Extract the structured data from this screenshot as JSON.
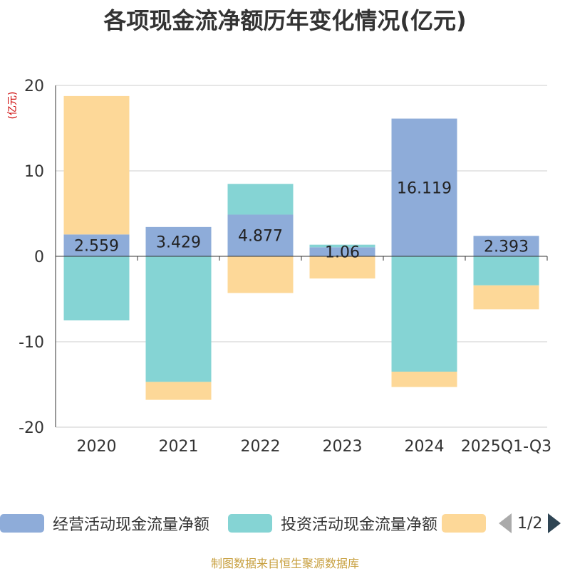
{
  "chart_data": {
    "type": "bar",
    "stacked": true,
    "title": "各项现金流净额历年变化情况(亿元)",
    "ylabel": "(亿元)",
    "ylim": [
      -20,
      20
    ],
    "yticks": [
      20,
      10,
      0,
      -10,
      -20
    ],
    "categories": [
      "2020",
      "2021",
      "2022",
      "2023",
      "2024",
      "2025Q1-Q3"
    ],
    "series": [
      {
        "name": "经营活动现金流量净额",
        "color": "#8eacd9",
        "values": [
          2.559,
          3.429,
          4.877,
          1.06,
          16.119,
          2.393
        ],
        "labels": [
          "2.559",
          "3.429",
          "4.877",
          "1.06",
          "16.119",
          "2.393"
        ]
      },
      {
        "name": "投资活动现金流量净额",
        "color": "#85d4d4",
        "values": [
          -7.5,
          -14.7,
          3.6,
          0.3,
          -13.5,
          -3.4
        ]
      },
      {
        "name": "",
        "color": "#fdd898",
        "values": [
          16.2,
          -2.1,
          -4.3,
          -2.6,
          -1.8,
          -2.8
        ]
      }
    ],
    "legend_placement": "bottom",
    "legend_page": "1/2",
    "source": "制图数据来自恒生聚源数据库"
  }
}
